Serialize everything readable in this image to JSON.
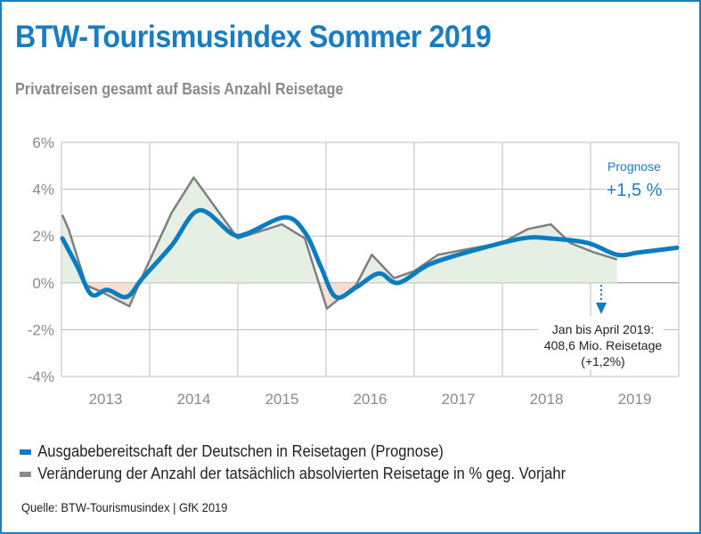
{
  "title": "BTW-Tourismusindex Sommer 2019",
  "subtitle": "Privatreisen gesamt auf Basis Anzahl Reisetage",
  "source": "Quelle: BTW-Tourismusindex | GfK 2019",
  "chart_data": {
    "type": "line",
    "ylim": [
      -4,
      6
    ],
    "xlim": [
      2013,
      2020
    ],
    "y_ticks": [
      "6%",
      "4%",
      "2%",
      "0%",
      "-2%",
      "-4%"
    ],
    "y_tick_values": [
      6,
      4,
      2,
      0,
      -2,
      -4
    ],
    "x_tick_labels": [
      "2013",
      "2014",
      "2015",
      "2016",
      "2017",
      "2018",
      "2019"
    ],
    "grid": true,
    "legend_position": "bottom",
    "colors": {
      "prognose": "#0a7cc1",
      "actual": "#7f7f7f",
      "fill_positive": "#e6efe3",
      "fill_negative": "#f6dfd3",
      "accent": "#1a7cc1"
    },
    "series": [
      {
        "name": "Ausgabebereitschaft der Deutschen in Reisetagen (Prognose)",
        "x": [
          2013.01,
          2013.18,
          2013.34,
          2013.52,
          2013.74,
          2013.92,
          2014.25,
          2014.56,
          2014.93,
          2015.1,
          2015.54,
          2015.77,
          2015.94,
          2016.11,
          2016.34,
          2016.6,
          2016.82,
          2017.18,
          2017.69,
          2018.23,
          2018.54,
          2018.97,
          2019.3,
          2019.55,
          2019.98
        ],
        "y": [
          1.9,
          0.7,
          -0.5,
          -0.3,
          -0.6,
          0.2,
          1.6,
          3.1,
          2.1,
          2.1,
          2.8,
          2.1,
          0.7,
          -0.6,
          -0.2,
          0.4,
          0.0,
          0.8,
          1.4,
          1.9,
          1.9,
          1.7,
          1.2,
          1.3,
          1.5
        ]
      },
      {
        "name": "Veränderung der Anzahl der tatsächlich absolvierten Reisetage in % geg. Vorjahr",
        "x": [
          2013.01,
          2013.08,
          2013.28,
          2013.46,
          2013.77,
          2013.92,
          2014.25,
          2014.5,
          2015.0,
          2015.5,
          2015.76,
          2016.01,
          2016.34,
          2016.52,
          2016.77,
          2017.0,
          2017.27,
          2017.69,
          2017.99,
          2018.29,
          2018.55,
          2018.77,
          2019.04,
          2019.3
        ],
        "y": [
          2.9,
          2.3,
          -0.1,
          -0.4,
          -1.0,
          0.3,
          3.0,
          4.5,
          1.9,
          2.5,
          1.9,
          -1.1,
          -0.1,
          1.2,
          0.2,
          0.5,
          1.2,
          1.5,
          1.7,
          2.3,
          2.5,
          1.7,
          1.3,
          1.0
        ]
      }
    ],
    "annotations": {
      "prognose_label": "Prognose",
      "prognose_value": "+1,5 %",
      "note_line1": "Jan bis April 2019:",
      "note_line2": "408,6 Mio. Reisetage",
      "note_line3": "(+1,2%)"
    }
  }
}
